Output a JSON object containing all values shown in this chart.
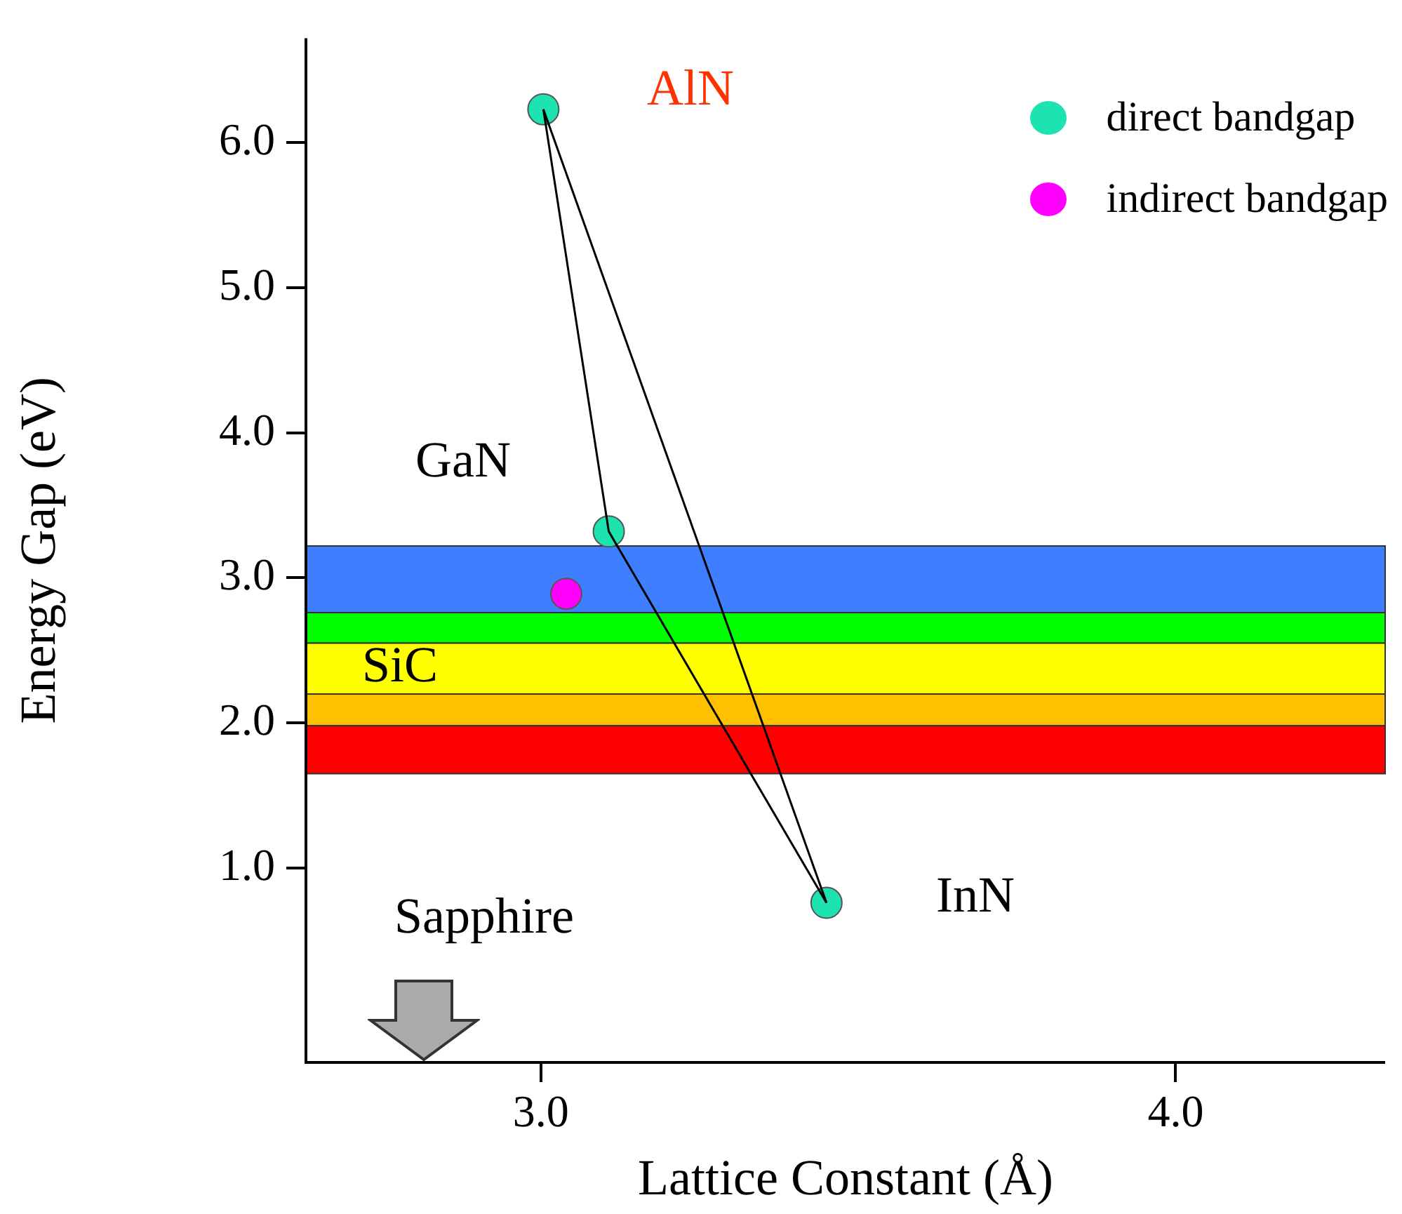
{
  "chart_data": {
    "type": "scatter",
    "xlabel": "Lattice Constant (Å)",
    "ylabel": "Energy Gap (eV)",
    "xlim": [
      2.63,
      4.33
    ],
    "ylim": [
      -0.34,
      6.72
    ],
    "xticks": [
      {
        "value": 3,
        "label": "3.0"
      },
      {
        "value": 4,
        "label": "4.0"
      }
    ],
    "yticks": [
      {
        "value": 1,
        "label": "1.0"
      },
      {
        "value": 2,
        "label": "2.0"
      },
      {
        "value": 3,
        "label": "3.0"
      },
      {
        "value": 4,
        "label": "4.0"
      },
      {
        "value": 5,
        "label": "5.0"
      },
      {
        "value": 6,
        "label": "6.0"
      }
    ],
    "series": [
      {
        "type": "line",
        "color": "#000000",
        "marker": "none",
        "x": [
          3.004,
          3.107,
          3.45
        ],
        "values": [
          6.23,
          3.32,
          0.76
        ]
      },
      {
        "type": "line",
        "color": "#000000",
        "marker": "none",
        "x": [
          3.004,
          3.45
        ],
        "values": [
          6.23,
          0.76
        ]
      },
      {
        "name": "direct bandgap",
        "color": "#1de3b0",
        "x": [
          3.004,
          3.107,
          3.45
        ],
        "values": [
          6.23,
          3.32,
          0.76
        ]
      },
      {
        "name": "indirect bandgap",
        "color": "#ff00ff",
        "x": [
          3.04
        ],
        "values": [
          2.89
        ]
      }
    ],
    "bands": [
      {
        "axis": "y",
        "from": 2.76,
        "to": 3.22,
        "color": "#3f7fff"
      },
      {
        "axis": "y",
        "from": 2.55,
        "to": 2.76,
        "color": "#00ff00"
      },
      {
        "axis": "y",
        "from": 2.2,
        "to": 2.55,
        "color": "#ffff00"
      },
      {
        "axis": "y",
        "from": 1.98,
        "to": 2.2,
        "color": "#ffc000"
      },
      {
        "axis": "y",
        "from": 1.65,
        "to": 1.98,
        "color": "#ff0000"
      }
    ],
    "annotations": [
      "AlN",
      "GaN",
      "SiC",
      "InN",
      "Sapphire"
    ],
    "legend": "top right",
    "grid": false,
    "marker": "circle"
  }
}
